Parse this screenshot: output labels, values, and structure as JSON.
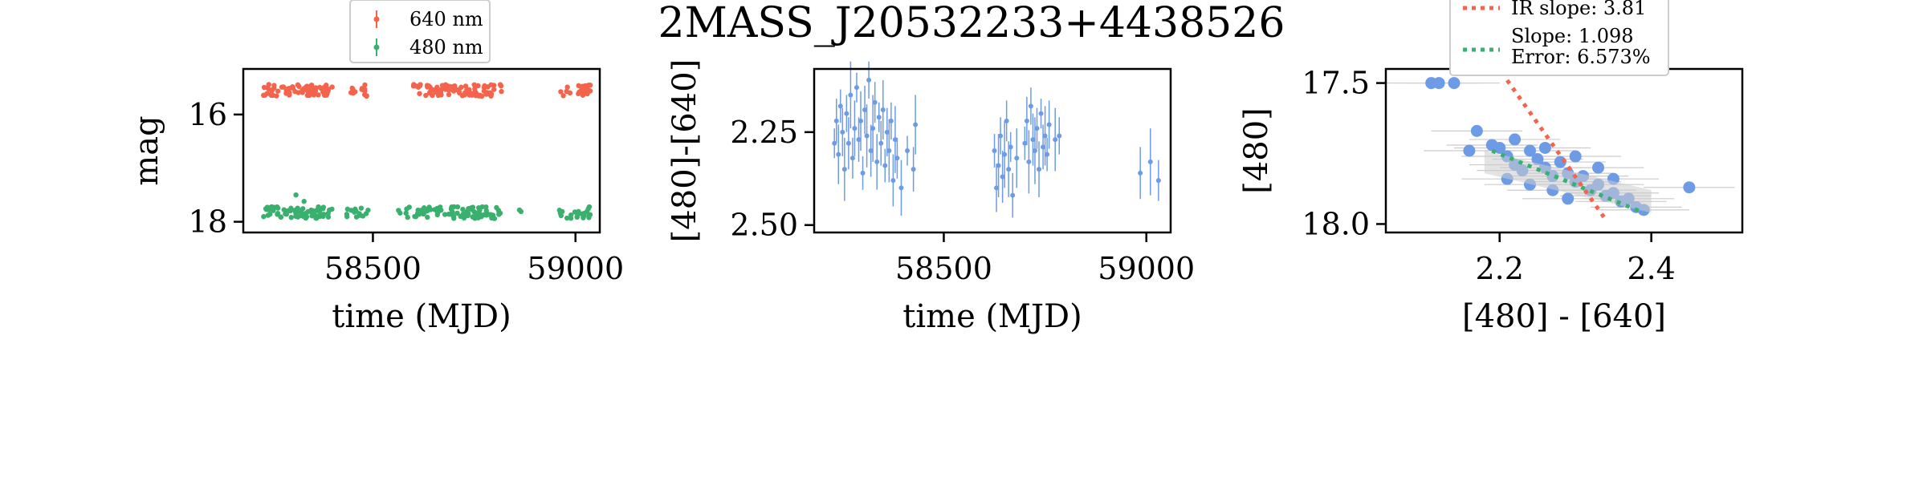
{
  "figure": {
    "title": "2MASS_J20532233+4438526"
  },
  "colors": {
    "red_band": "#f4634b",
    "green_band": "#3ab06e",
    "color_index": "#6d9be6",
    "ir_slope": "#f4634b",
    "fit_slope": "#3ab06e",
    "error_bar_gray": "#cccccc"
  },
  "chart_data": [
    {
      "type": "scatter",
      "panel": "light-curve",
      "title": "",
      "xlabel": "time (MJD)",
      "ylabel": "mag",
      "xlim": [
        58180,
        59060
      ],
      "ylim": [
        18.2,
        15.15
      ],
      "y_inverted": true,
      "xticks": [
        58500,
        59000
      ],
      "xtick_labels": [
        "58500",
        "59000"
      ],
      "yticks": [
        16,
        18
      ],
      "ytick_labels": [
        "16",
        "18"
      ],
      "legend": {
        "placement": "top-center, above axes",
        "entries": [
          "640 nm",
          "480 nm"
        ]
      },
      "series": [
        {
          "name": "640 nm",
          "color": "#f4634b",
          "mean_mag": 15.55,
          "segments": [
            [
              58230,
              58400,
              70
            ],
            [
              58440,
              58485,
              14
            ],
            [
              58600,
              58800,
              80
            ],
            [
              58805,
              58820,
              3
            ],
            [
              58960,
              59040,
              22
            ]
          ]
        },
        {
          "name": "480 nm",
          "color": "#3ab06e",
          "mean_mag": 17.83,
          "segments": [
            [
              58230,
              58400,
              70
            ],
            [
              58430,
              58490,
              14
            ],
            [
              58560,
              58590,
              6
            ],
            [
              58600,
              58815,
              80
            ],
            [
              58860,
              58870,
              2
            ],
            [
              58960,
              59040,
              22
            ]
          ],
          "outliers": [
            [
              58310,
              17.5
            ],
            [
              58330,
              17.62
            ],
            [
              58250,
              17.72
            ]
          ]
        }
      ]
    },
    {
      "type": "scatter",
      "panel": "color-curve",
      "title": "",
      "xlabel": "time (MJD)",
      "ylabel": "[480]-[640]",
      "xlim": [
        58180,
        59060
      ],
      "ylim": [
        2.52,
        2.08
      ],
      "y_inverted": true,
      "xticks": [
        58500,
        59000
      ],
      "xtick_labels": [
        "58500",
        "59000"
      ],
      "yticks": [
        2.25,
        2.5
      ],
      "ytick_labels": [
        "2.25",
        "2.50"
      ],
      "series": [
        {
          "name": "",
          "color": "#6d9be6",
          "points": [
            [
              58230,
              2.28
            ],
            [
              58235,
              2.22
            ],
            [
              58240,
              2.31
            ],
            [
              58245,
              2.18
            ],
            [
              58250,
              2.25
            ],
            [
              58255,
              2.35
            ],
            [
              58260,
              2.2
            ],
            [
              58265,
              2.28
            ],
            [
              58270,
              2.15
            ],
            [
              58275,
              2.32
            ],
            [
              58280,
              2.24
            ],
            [
              58285,
              2.13
            ],
            [
              58290,
              2.27
            ],
            [
              58295,
              2.22
            ],
            [
              58300,
              2.36
            ],
            [
              58305,
              2.19
            ],
            [
              58310,
              2.26
            ],
            [
              58315,
              2.11
            ],
            [
              58320,
              2.3
            ],
            [
              58325,
              2.24
            ],
            [
              58330,
              2.17
            ],
            [
              58335,
              2.33
            ],
            [
              58340,
              2.21
            ],
            [
              58345,
              2.28
            ],
            [
              58350,
              2.19
            ],
            [
              58355,
              2.34
            ],
            [
              58360,
              2.25
            ],
            [
              58365,
              2.3
            ],
            [
              58370,
              2.22
            ],
            [
              58375,
              2.38
            ],
            [
              58380,
              2.27
            ],
            [
              58385,
              2.32
            ],
            [
              58395,
              2.4
            ],
            [
              58410,
              2.3
            ],
            [
              58425,
              2.35
            ],
            [
              58430,
              2.23
            ],
            [
              58625,
              2.3
            ],
            [
              58630,
              2.4
            ],
            [
              58635,
              2.34
            ],
            [
              58640,
              2.26
            ],
            [
              58645,
              2.37
            ],
            [
              58650,
              2.31
            ],
            [
              58655,
              2.22
            ],
            [
              58660,
              2.35
            ],
            [
              58665,
              2.29
            ],
            [
              58670,
              2.42
            ],
            [
              58680,
              2.32
            ],
            [
              58700,
              2.28
            ],
            [
              58705,
              2.22
            ],
            [
              58710,
              2.33
            ],
            [
              58715,
              2.18
            ],
            [
              58720,
              2.27
            ],
            [
              58725,
              2.3
            ],
            [
              58730,
              2.24
            ],
            [
              58735,
              2.35
            ],
            [
              58740,
              2.2
            ],
            [
              58745,
              2.29
            ],
            [
              58750,
              2.26
            ],
            [
              58755,
              2.31
            ],
            [
              58760,
              2.23
            ],
            [
              58775,
              2.27
            ],
            [
              58785,
              2.26
            ],
            [
              58985,
              2.36
            ],
            [
              59010,
              2.33
            ],
            [
              59030,
              2.38
            ]
          ]
        }
      ]
    },
    {
      "type": "scatter",
      "panel": "color-magnitude",
      "title": "",
      "xlabel": "[480] - [640]",
      "ylabel": "[480]",
      "xlim": [
        2.05,
        2.52
      ],
      "ylim": [
        18.03,
        17.45
      ],
      "y_inverted": true,
      "xticks": [
        2.2,
        2.4
      ],
      "xtick_labels": [
        "2.2",
        "2.4"
      ],
      "yticks": [
        17.5,
        18.0
      ],
      "ytick_labels": [
        "17.5",
        "18.0"
      ],
      "legend": {
        "placement": "top-center, above axes",
        "entries": [
          "IR slope: 3.81",
          "Slope: 1.098\nError: 6.573%"
        ]
      },
      "series": [
        {
          "name": "",
          "color": "#6d9be6",
          "points": [
            [
              2.11,
              17.5
            ],
            [
              2.12,
              17.5
            ],
            [
              2.14,
              17.5
            ],
            [
              2.17,
              17.67
            ],
            [
              2.16,
              17.74
            ],
            [
              2.19,
              17.72
            ],
            [
              2.2,
              17.73
            ],
            [
              2.21,
              17.76
            ],
            [
              2.22,
              17.79
            ],
            [
              2.23,
              17.81
            ],
            [
              2.24,
              17.74
            ],
            [
              2.25,
              17.77
            ],
            [
              2.26,
              17.8
            ],
            [
              2.27,
              17.83
            ],
            [
              2.28,
              17.78
            ],
            [
              2.29,
              17.82
            ],
            [
              2.3,
              17.85
            ],
            [
              2.31,
              17.83
            ],
            [
              2.32,
              17.88
            ],
            [
              2.33,
              17.86
            ],
            [
              2.34,
              17.9
            ],
            [
              2.35,
              17.89
            ],
            [
              2.36,
              17.92
            ],
            [
              2.37,
              17.91
            ],
            [
              2.38,
              17.94
            ],
            [
              2.39,
              17.95
            ],
            [
              2.45,
              17.87
            ],
            [
              2.21,
              17.84
            ],
            [
              2.24,
              17.86
            ],
            [
              2.27,
              17.88
            ],
            [
              2.3,
              17.76
            ],
            [
              2.33,
              17.8
            ],
            [
              2.26,
              17.73
            ],
            [
              2.29,
              17.91
            ],
            [
              2.35,
              17.84
            ],
            [
              2.22,
              17.7
            ]
          ]
        }
      ],
      "lines": [
        {
          "name": "IR slope: 3.81",
          "slope": 3.81,
          "style": "dotted",
          "color": "#f4634b",
          "from": [
            2.21,
            17.49
          ],
          "to": [
            2.34,
            17.985
          ]
        },
        {
          "name": "Slope: 1.098",
          "slope": 1.098,
          "style": "dotted",
          "color": "#3ab06e",
          "from": [
            2.19,
            17.74
          ],
          "to": [
            2.39,
            17.96
          ]
        }
      ]
    }
  ]
}
